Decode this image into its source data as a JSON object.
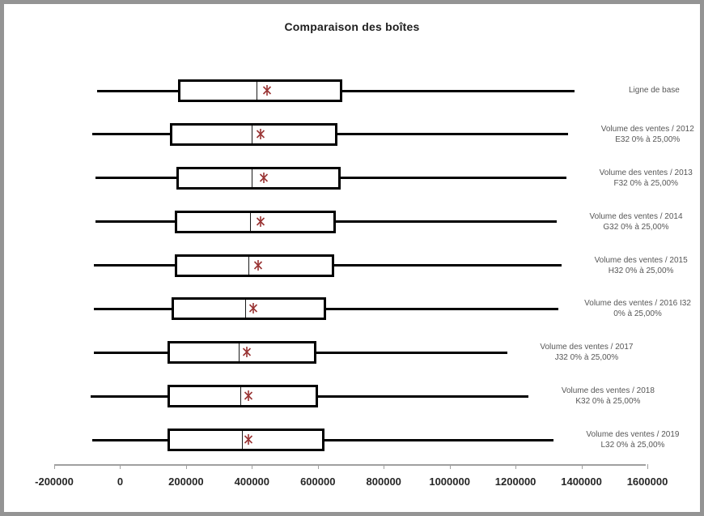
{
  "window": {
    "background": "#ffffff",
    "frame_border_color": "#949494"
  },
  "chart_data": {
    "type": "boxplot",
    "orientation": "horizontal",
    "title": "Comparaison des boîtes",
    "xlabel": "",
    "ylabel": "",
    "xlim": [
      -200000,
      1600000
    ],
    "x_ticks": [
      -200000,
      0,
      200000,
      400000,
      600000,
      800000,
      1000000,
      1200000,
      1400000,
      1600000
    ],
    "grid": false,
    "legend": "none",
    "box_fill": "#ffffff",
    "box_border_color": "#000000",
    "whisker_color": "#000000",
    "median_color": "#1a1a1a",
    "mean_marker": {
      "shape": "asterisk",
      "color": "#993333"
    },
    "series": [
      {
        "label_lines": [
          "Ligne de base"
        ],
        "whisker_low": -70000,
        "q1": 175000,
        "median": 415000,
        "mean": 445000,
        "q3": 675000,
        "whisker_high": 1380000
      },
      {
        "label_lines": [
          "Volume des ventes / 2012",
          "E32 0% à 25,00%"
        ],
        "whisker_low": -85000,
        "q1": 150000,
        "median": 400000,
        "mean": 425000,
        "q3": 660000,
        "whisker_high": 1360000
      },
      {
        "label_lines": [
          "Volume des ventes / 2013",
          "F32 0% à 25,00%"
        ],
        "whisker_low": -75000,
        "q1": 170000,
        "median": 400000,
        "mean": 435000,
        "q3": 670000,
        "whisker_high": 1355000
      },
      {
        "label_lines": [
          "Volume des ventes / 2014",
          "G32 0% à 25,00%"
        ],
        "whisker_low": -75000,
        "q1": 165000,
        "median": 395000,
        "mean": 425000,
        "q3": 655000,
        "whisker_high": 1325000
      },
      {
        "label_lines": [
          "Volume des ventes / 2015",
          "H32 0% à 25,00%"
        ],
        "whisker_low": -80000,
        "q1": 165000,
        "median": 390000,
        "mean": 420000,
        "q3": 650000,
        "whisker_high": 1340000
      },
      {
        "label_lines": [
          "Volume des ventes / 2016 I32",
          "0% à 25,00%"
        ],
        "whisker_low": -80000,
        "q1": 155000,
        "median": 380000,
        "mean": 405000,
        "q3": 625000,
        "whisker_high": 1330000
      },
      {
        "label_lines": [
          "Volume des ventes / 2017",
          "J32 0% à 25,00%"
        ],
        "whisker_low": -80000,
        "q1": 145000,
        "median": 360000,
        "mean": 385000,
        "q3": 595000,
        "whisker_high": 1175000
      },
      {
        "label_lines": [
          "Volume des ventes / 2018",
          "K32 0% à 25,00%"
        ],
        "whisker_low": -90000,
        "q1": 145000,
        "median": 365000,
        "mean": 390000,
        "q3": 600000,
        "whisker_high": 1240000
      },
      {
        "label_lines": [
          "Volume des ventes / 2019",
          "L32 0% à 25,00%"
        ],
        "whisker_low": -85000,
        "q1": 145000,
        "median": 370000,
        "mean": 390000,
        "q3": 620000,
        "whisker_high": 1315000
      }
    ]
  }
}
